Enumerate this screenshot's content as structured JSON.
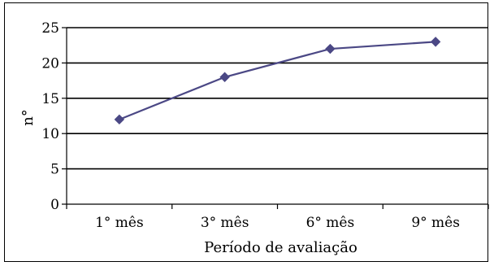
{
  "chart_data": {
    "type": "line",
    "categories": [
      "1° mês",
      "3° mês",
      "6° mês",
      "9° mês"
    ],
    "series": [
      {
        "values": [
          12,
          18,
          22,
          23
        ],
        "color": "#4B4885",
        "marker": "diamond"
      }
    ],
    "title": "",
    "xlabel": "Período de avaliação",
    "ylabel": "n°",
    "ylim": [
      0,
      25
    ],
    "yticks": [
      0,
      5,
      10,
      15,
      20,
      25
    ],
    "grid": true,
    "legend": "none"
  }
}
